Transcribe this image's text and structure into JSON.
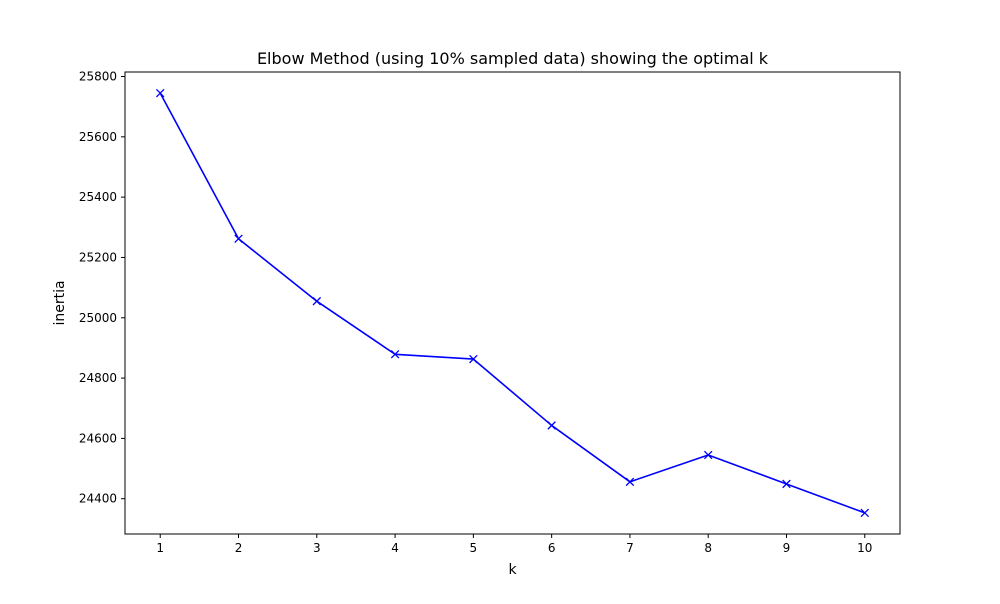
{
  "chart_data": {
    "type": "line",
    "title": "Elbow Method (using 10% sampled data) showing the optimal k",
    "xlabel": "k",
    "ylabel": "inertia",
    "x": [
      1,
      2,
      3,
      4,
      5,
      6,
      7,
      8,
      9,
      10
    ],
    "series": [
      {
        "values": [
          25745,
          25262,
          25055,
          24879,
          24863,
          24643,
          24456,
          24545,
          24449,
          24353
        ],
        "color": "#0000ff",
        "marker": "x"
      }
    ],
    "xticks": [
      1,
      2,
      3,
      4,
      5,
      6,
      7,
      8,
      9,
      10
    ],
    "yticks": [
      24400,
      24600,
      24800,
      25000,
      25200,
      25400,
      25600,
      25800
    ],
    "xlim": [
      0.55,
      10.45
    ],
    "ylim": [
      24283,
      25815
    ],
    "grid": false
  }
}
